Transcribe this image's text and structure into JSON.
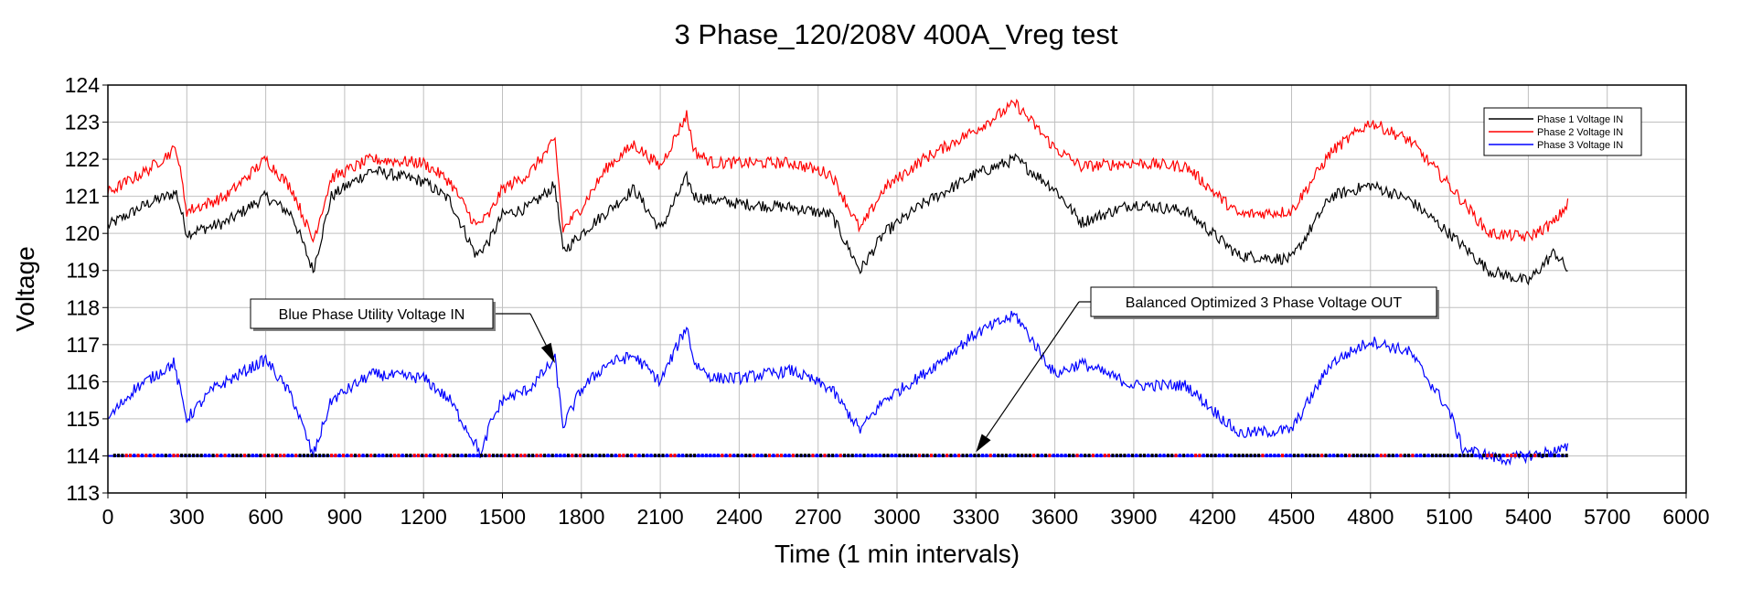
{
  "chart_data": {
    "type": "line",
    "title": "3 Phase_120/208V 400A_Vreg test",
    "xlabel": "Time (1 min intervals)",
    "ylabel": "Voltage",
    "xlim": [
      0,
      6000
    ],
    "ylim": [
      113,
      124
    ],
    "xticks": [
      0,
      300,
      600,
      900,
      1200,
      1500,
      1800,
      2100,
      2400,
      2700,
      3000,
      3300,
      3600,
      3900,
      4200,
      4500,
      4800,
      5100,
      5400,
      5700,
      6000
    ],
    "yticks": [
      113,
      114,
      115,
      116,
      117,
      118,
      119,
      120,
      121,
      122,
      123,
      124
    ],
    "grid": true,
    "legend_position": "top-right",
    "series": [
      {
        "name": "Phase 1 Voltage IN",
        "color": "#000000",
        "x": [
          0,
          150,
          260,
          300,
          450,
          600,
          700,
          780,
          850,
          1000,
          1200,
          1300,
          1400,
          1450,
          1500,
          1600,
          1700,
          1730,
          1800,
          1900,
          2000,
          2100,
          2200,
          2230,
          2300,
          2400,
          2600,
          2750,
          2860,
          2950,
          3100,
          3300,
          3450,
          3600,
          3700,
          3900,
          4100,
          4300,
          4500,
          4650,
          4800,
          4950,
          5100,
          5250,
          5400,
          5500,
          5550
        ],
        "values": [
          120.2,
          120.8,
          121.1,
          120.0,
          120.3,
          121.0,
          120.5,
          119.0,
          121.0,
          121.7,
          121.4,
          120.9,
          119.4,
          119.8,
          120.5,
          120.7,
          121.3,
          119.5,
          120.0,
          120.6,
          121.2,
          120.1,
          121.5,
          121.0,
          120.9,
          120.8,
          120.7,
          120.5,
          119.0,
          120.0,
          120.8,
          121.6,
          122.0,
          121.2,
          120.3,
          120.8,
          120.6,
          119.4,
          119.3,
          121.0,
          121.3,
          120.9,
          120.0,
          119.0,
          118.7,
          119.5,
          119.0
        ]
      },
      {
        "name": "Phase 2 Voltage IN",
        "color": "#ff0000",
        "x": [
          0,
          150,
          260,
          300,
          450,
          600,
          700,
          780,
          850,
          1000,
          1200,
          1300,
          1400,
          1450,
          1500,
          1600,
          1700,
          1730,
          1800,
          1900,
          2000,
          2100,
          2200,
          2230,
          2300,
          2400,
          2600,
          2750,
          2860,
          2950,
          3100,
          3300,
          3450,
          3600,
          3700,
          3900,
          4100,
          4300,
          4500,
          4650,
          4800,
          4950,
          5100,
          5250,
          5400,
          5500,
          5550
        ],
        "values": [
          121.1,
          121.7,
          122.3,
          120.6,
          121.0,
          122.0,
          121.2,
          119.8,
          121.5,
          122.0,
          121.9,
          121.4,
          120.2,
          120.5,
          121.2,
          121.6,
          122.5,
          120.1,
          120.7,
          121.8,
          122.4,
          121.8,
          123.2,
          122.2,
          121.9,
          121.9,
          121.9,
          121.6,
          120.1,
          121.2,
          122.0,
          122.8,
          123.5,
          122.3,
          121.8,
          121.9,
          121.8,
          120.5,
          120.6,
          122.2,
          123.0,
          122.5,
          121.3,
          120.0,
          119.9,
          120.3,
          120.8
        ]
      },
      {
        "name": "Phase 3 Voltage IN",
        "color": "#0000ff",
        "x": [
          0,
          100,
          250,
          300,
          400,
          600,
          700,
          780,
          850,
          1000,
          1200,
          1300,
          1400,
          1420,
          1450,
          1500,
          1600,
          1700,
          1730,
          1800,
          1900,
          2000,
          2100,
          2200,
          2230,
          2300,
          2400,
          2600,
          2750,
          2860,
          2950,
          3100,
          3300,
          3450,
          3600,
          3700,
          3900,
          4100,
          4300,
          4500,
          4650,
          4800,
          4950,
          5100,
          5150,
          5300,
          5400,
          5550
        ],
        "values": [
          115.0,
          115.8,
          116.5,
          115.0,
          115.8,
          116.6,
          115.6,
          114.0,
          115.5,
          116.2,
          116.1,
          115.5,
          114.3,
          114.0,
          114.8,
          115.5,
          115.8,
          116.6,
          114.8,
          115.8,
          116.5,
          116.7,
          116.0,
          117.5,
          116.5,
          116.1,
          116.1,
          116.3,
          115.8,
          114.7,
          115.5,
          116.2,
          117.3,
          117.8,
          116.2,
          116.5,
          115.9,
          115.9,
          114.6,
          114.7,
          116.5,
          117.1,
          116.8,
          115.2,
          114.2,
          113.9,
          114.0,
          114.2
        ]
      },
      {
        "name": "",
        "color": "#0000ff",
        "x": [
          0,
          5550
        ],
        "values": [
          114.0,
          114.0
        ]
      }
    ],
    "annotations": [
      {
        "text": "Blue Phase Utility Voltage IN",
        "target_x": 1700,
        "target_y": 116.5
      },
      {
        "text": "Balanced Optimized 3 Phase Voltage OUT",
        "target_x": 3300,
        "target_y": 114.1
      }
    ]
  }
}
